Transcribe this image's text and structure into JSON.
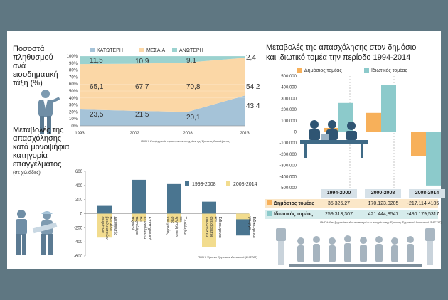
{
  "panels": {
    "income": {
      "title_lines": [
        "Ποσοστά",
        "πληθυσμού",
        "ανά",
        "εισοδηματική",
        "τάξη (%)"
      ],
      "source": "ΠΗΓΗ: Επεξεργασία πρωτογενών στοιχείων της Έρευνας Εισοδήματος"
    },
    "occupation": {
      "title_lines": [
        "Μεταβολές της",
        "απασχόλησης",
        "κατά μονοψήφια",
        "κατηγορία",
        "επαγγέλματος"
      ],
      "subtitle": "(σε χιλιάδες)",
      "source": "ΠΗΓΗ: Έρευνα Εργατικού Δυναμικού (ΕΛΣΤΑΤ)"
    },
    "sector": {
      "title_lines": [
        "Μεταβολές της απασχόλησης στον δημόσιο",
        "και ιδιωτικό τομέα την περίοδο 1994-2014"
      ],
      "source": "ΠΗΓΗ: Επεξεργασία ανθρωποποιημένων στοιχείων της Έρευνας Εργατικού Δυναμικού (ΕΛΣΤΑΤ)"
    }
  },
  "colors": {
    "low": "#a5c3d8",
    "middle": "#fbd7a6",
    "high": "#9bd2cf",
    "orange": "#f7b05a",
    "teal": "#8ccacb",
    "dark_blue": "#4a7590",
    "yellow": "#f2dc8e",
    "table_orange": "#fbe7c8",
    "table_teal": "#d6ecec"
  },
  "chart_data": [
    {
      "type": "area",
      "x": [
        "1993",
        "2002",
        "2008",
        "2013"
      ],
      "series": [
        {
          "name": "ΚΑΤΩΤΕΡΗ",
          "values": [
            23.5,
            21.5,
            20.1,
            43.4
          ],
          "labels": [
            "23,5",
            "21,5",
            "20,1",
            "43,4"
          ]
        },
        {
          "name": "ΜΕΣΑΙΑ",
          "values": [
            65.1,
            67.7,
            70.8,
            54.2
          ],
          "labels": [
            "65,1",
            "67,7",
            "70,8",
            "54,2"
          ]
        },
        {
          "name": "ΑΝΩΤΕΡΗ",
          "values": [
            11.5,
            10.9,
            9.1,
            2.4
          ],
          "labels": [
            "11,5",
            "10,9",
            "9,1",
            "2,4"
          ]
        }
      ],
      "ylim": [
        0,
        100
      ],
      "yticks": [
        "0%",
        "10%",
        "20%",
        "30%",
        "40%",
        "50%",
        "60%",
        "70%",
        "80%",
        "90%",
        "100%"
      ],
      "stacked": true,
      "legend": "top"
    },
    {
      "type": "bar",
      "categories": [
        "Διευθυντές και μέλη βουλ.ευτικών σωμάτων",
        "Επιστημονικά επαγγέλματα και τεχνολόγοι - τεχνικοί",
        "Υπάλληλοι και εργαζόμενοι στις υπηρεσίες",
        "Ειδικευμένοι και ανειδίκευτοι χειρώνακτες",
        "Ειδικευμένοι γεωργοί"
      ],
      "series": [
        {
          "name": "1993-2008",
          "values": [
            110,
            480,
            420,
            170,
            -310
          ]
        },
        {
          "name": "2008-2014",
          "values": [
            -340,
            -110,
            -120,
            -470,
            -80
          ]
        }
      ],
      "ylim": [
        -600,
        600
      ],
      "yticks": [
        "-600",
        "-400",
        "-200",
        "0",
        "200",
        "400",
        "600"
      ],
      "legend": "top-right"
    },
    {
      "type": "bar",
      "categories": [
        "1994-2000",
        "2000-2008",
        "2008-2014"
      ],
      "series": [
        {
          "name": "Δημόσιος τομέας",
          "values": [
            35325.27,
            170123.0205,
            -217114.4105
          ],
          "labels": [
            "35.325,27",
            "170.123,0205",
            "-217.114,4105"
          ]
        },
        {
          "name": "Ιδιωτικός τομέας",
          "values": [
            259313.307,
            421444.8547,
            -480179.5317
          ],
          "labels": [
            "259.313,307",
            "421.444,8547",
            "-480.179,5317"
          ]
        }
      ],
      "ylim": [
        -500000,
        500000
      ],
      "yticks": [
        "500.000",
        "400.000",
        "300.000",
        "200.000",
        "100.000",
        "0",
        "-100.000",
        "-200.000",
        "-300.000",
        "-400.000",
        "-500.000"
      ],
      "legend": "top"
    }
  ]
}
